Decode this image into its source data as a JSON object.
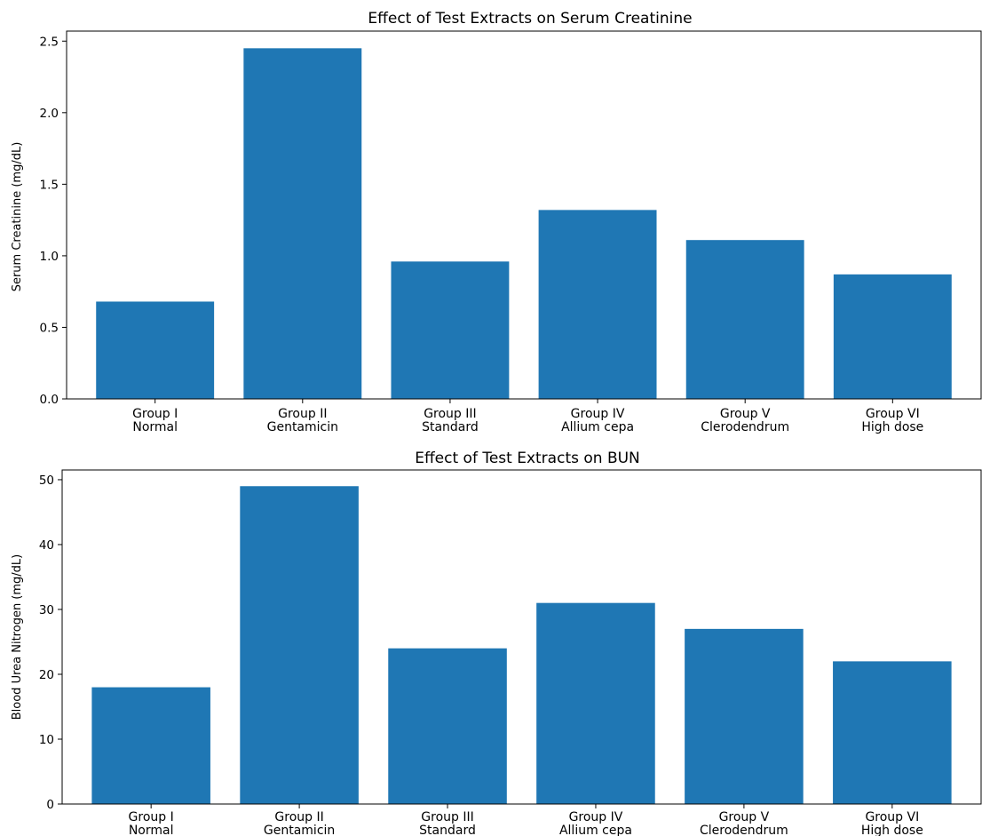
{
  "chart_data": [
    {
      "type": "bar",
      "title": "Effect of Test Extracts on Serum Creatinine",
      "xlabel": "",
      "ylabel": "Serum Creatinine (mg/dL)",
      "categories": [
        [
          "Group I",
          "Normal"
        ],
        [
          "Group II",
          "Gentamicin"
        ],
        [
          "Group III",
          "Standard"
        ],
        [
          "Group IV",
          "Allium cepa"
        ],
        [
          "Group V",
          "Clerodendrum"
        ],
        [
          "Group VI",
          "High dose"
        ]
      ],
      "values": [
        0.68,
        2.45,
        0.96,
        1.32,
        1.11,
        0.87
      ],
      "ylim": [
        0,
        2.57
      ],
      "yticks": [
        0.0,
        0.5,
        1.0,
        1.5,
        2.0,
        2.5
      ],
      "ytick_labels": [
        "0.0",
        "0.5",
        "1.0",
        "1.5",
        "2.0",
        "2.5"
      ],
      "color": "#1f77b4",
      "grid": false
    },
    {
      "type": "bar",
      "title": "Effect of Test Extracts on BUN",
      "xlabel": "",
      "ylabel": "Blood Urea Nitrogen (mg/dL)",
      "categories": [
        [
          "Group I",
          "Normal"
        ],
        [
          "Group II",
          "Gentamicin"
        ],
        [
          "Group III",
          "Standard"
        ],
        [
          "Group IV",
          "Allium cepa"
        ],
        [
          "Group V",
          "Clerodendrum"
        ],
        [
          "Group VI",
          "High dose"
        ]
      ],
      "values": [
        18,
        49,
        24,
        31,
        27,
        22
      ],
      "ylim": [
        0,
        51.5
      ],
      "yticks": [
        0,
        10,
        20,
        30,
        40,
        50
      ],
      "ytick_labels": [
        "0",
        "10",
        "20",
        "30",
        "40",
        "50"
      ],
      "color": "#1f77b4",
      "grid": false
    }
  ]
}
